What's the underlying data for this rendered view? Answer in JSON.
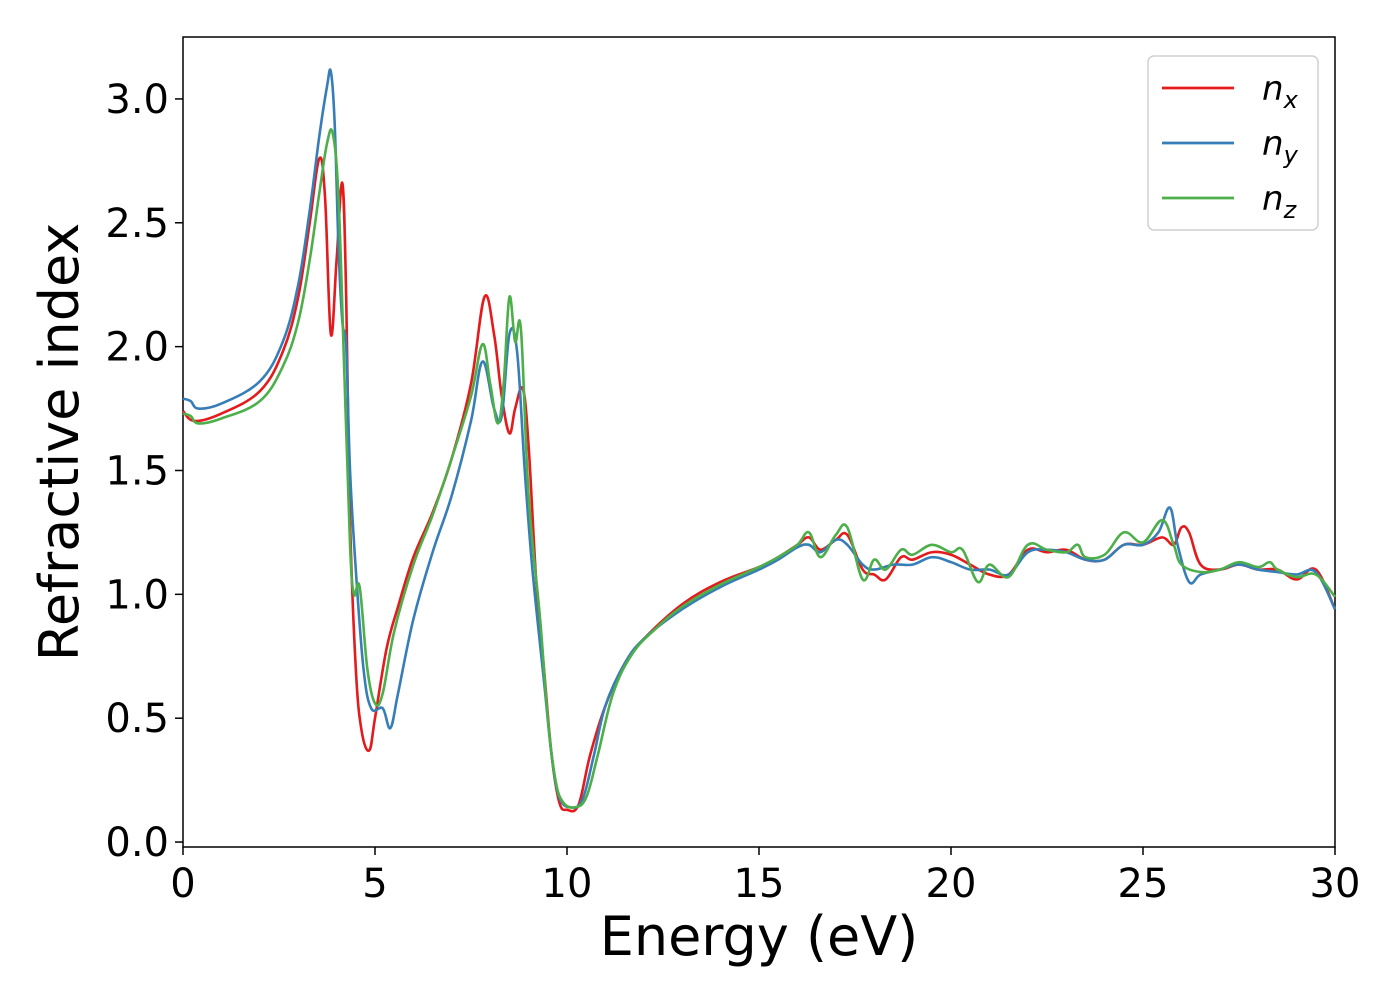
{
  "chart_data": {
    "type": "line",
    "title": "",
    "xlabel": "Energy (eV)",
    "ylabel": "Refractive index",
    "xlim": [
      0,
      30
    ],
    "ylim": [
      -0.02,
      3.25
    ],
    "xticks": [
      0,
      5,
      10,
      15,
      20,
      25,
      30
    ],
    "xtick_labels": [
      "0",
      "5",
      "10",
      "15",
      "20",
      "25",
      "30"
    ],
    "yticks": [
      0.0,
      0.5,
      1.0,
      1.5,
      2.0,
      2.5,
      3.0
    ],
    "ytick_labels": [
      "0.0",
      "0.5",
      "1.0",
      "1.5",
      "2.0",
      "2.5",
      "3.0"
    ],
    "grid": false,
    "legend_position": "top-right",
    "series": [
      {
        "name": "n",
        "subscript": "x",
        "color": "#e41a1c",
        "points": [
          [
            0,
            1.74
          ],
          [
            0.3,
            1.7
          ],
          [
            1,
            1.73
          ],
          [
            2,
            1.82
          ],
          [
            2.6,
            1.98
          ],
          [
            3,
            2.2
          ],
          [
            3.3,
            2.5
          ],
          [
            3.55,
            2.76
          ],
          [
            3.7,
            2.6
          ],
          [
            3.85,
            2.05
          ],
          [
            4.0,
            2.35
          ],
          [
            4.15,
            2.66
          ],
          [
            4.25,
            2.2
          ],
          [
            4.35,
            1.3
          ],
          [
            4.5,
            0.7
          ],
          [
            4.65,
            0.45
          ],
          [
            4.85,
            0.37
          ],
          [
            5.0,
            0.5
          ],
          [
            5.3,
            0.78
          ],
          [
            5.6,
            0.95
          ],
          [
            6,
            1.15
          ],
          [
            6.5,
            1.33
          ],
          [
            7,
            1.55
          ],
          [
            7.5,
            1.85
          ],
          [
            7.85,
            2.2
          ],
          [
            8.1,
            2.05
          ],
          [
            8.3,
            1.8
          ],
          [
            8.5,
            1.65
          ],
          [
            8.65,
            1.75
          ],
          [
            8.85,
            1.83
          ],
          [
            9.0,
            1.6
          ],
          [
            9.2,
            1.05
          ],
          [
            9.4,
            0.7
          ],
          [
            9.6,
            0.35
          ],
          [
            9.8,
            0.16
          ],
          [
            10.0,
            0.13
          ],
          [
            10.3,
            0.15
          ],
          [
            10.6,
            0.35
          ],
          [
            11,
            0.55
          ],
          [
            11.5,
            0.72
          ],
          [
            12,
            0.82
          ],
          [
            13,
            0.96
          ],
          [
            14,
            1.05
          ],
          [
            15,
            1.11
          ],
          [
            15.5,
            1.15
          ],
          [
            16,
            1.2
          ],
          [
            16.3,
            1.23
          ],
          [
            16.6,
            1.18
          ],
          [
            17,
            1.22
          ],
          [
            17.3,
            1.24
          ],
          [
            17.7,
            1.1
          ],
          [
            18,
            1.08
          ],
          [
            18.3,
            1.06
          ],
          [
            18.7,
            1.15
          ],
          [
            19,
            1.14
          ],
          [
            19.5,
            1.17
          ],
          [
            20,
            1.16
          ],
          [
            20.5,
            1.12
          ],
          [
            21,
            1.08
          ],
          [
            21.5,
            1.08
          ],
          [
            22,
            1.18
          ],
          [
            22.5,
            1.17
          ],
          [
            23,
            1.18
          ],
          [
            23.5,
            1.14
          ],
          [
            24,
            1.14
          ],
          [
            24.5,
            1.2
          ],
          [
            25,
            1.2
          ],
          [
            25.5,
            1.23
          ],
          [
            25.8,
            1.2
          ],
          [
            26,
            1.27
          ],
          [
            26.2,
            1.25
          ],
          [
            26.5,
            1.12
          ],
          [
            27,
            1.1
          ],
          [
            27.5,
            1.12
          ],
          [
            28,
            1.1
          ],
          [
            28.5,
            1.1
          ],
          [
            29,
            1.06
          ],
          [
            29.5,
            1.1
          ],
          [
            30,
            0.94
          ]
        ]
      },
      {
        "name": "n",
        "subscript": "y",
        "color": "#377eb8",
        "points": [
          [
            0,
            1.79
          ],
          [
            0.2,
            1.78
          ],
          [
            0.4,
            1.75
          ],
          [
            1,
            1.77
          ],
          [
            2,
            1.86
          ],
          [
            2.6,
            2.02
          ],
          [
            3,
            2.25
          ],
          [
            3.3,
            2.55
          ],
          [
            3.55,
            2.85
          ],
          [
            3.75,
            3.05
          ],
          [
            3.85,
            3.11
          ],
          [
            3.95,
            2.9
          ],
          [
            4.05,
            2.4
          ],
          [
            4.15,
            2.1
          ],
          [
            4.25,
            2.0
          ],
          [
            4.35,
            1.5
          ],
          [
            4.5,
            1.1
          ],
          [
            4.7,
            0.7
          ],
          [
            4.9,
            0.54
          ],
          [
            5.2,
            0.54
          ],
          [
            5.4,
            0.46
          ],
          [
            5.6,
            0.6
          ],
          [
            6,
            0.9
          ],
          [
            6.5,
            1.17
          ],
          [
            7,
            1.4
          ],
          [
            7.5,
            1.7
          ],
          [
            7.8,
            1.94
          ],
          [
            8.1,
            1.75
          ],
          [
            8.3,
            1.72
          ],
          [
            8.5,
            2.05
          ],
          [
            8.7,
            1.98
          ],
          [
            8.9,
            1.5
          ],
          [
            9.1,
            1.1
          ],
          [
            9.4,
            0.65
          ],
          [
            9.6,
            0.35
          ],
          [
            9.8,
            0.18
          ],
          [
            10.1,
            0.14
          ],
          [
            10.4,
            0.17
          ],
          [
            10.7,
            0.35
          ],
          [
            11,
            0.55
          ],
          [
            11.5,
            0.72
          ],
          [
            12,
            0.82
          ],
          [
            13,
            0.94
          ],
          [
            14,
            1.03
          ],
          [
            15,
            1.1
          ],
          [
            15.5,
            1.14
          ],
          [
            16,
            1.19
          ],
          [
            16.3,
            1.2
          ],
          [
            16.6,
            1.17
          ],
          [
            17,
            1.22
          ],
          [
            17.3,
            1.2
          ],
          [
            17.7,
            1.12
          ],
          [
            18,
            1.1
          ],
          [
            18.5,
            1.12
          ],
          [
            19,
            1.12
          ],
          [
            19.5,
            1.15
          ],
          [
            20,
            1.13
          ],
          [
            20.5,
            1.1
          ],
          [
            21,
            1.1
          ],
          [
            21.5,
            1.08
          ],
          [
            22,
            1.17
          ],
          [
            22.5,
            1.18
          ],
          [
            23,
            1.17
          ],
          [
            23.5,
            1.14
          ],
          [
            24,
            1.14
          ],
          [
            24.5,
            1.2
          ],
          [
            25,
            1.2
          ],
          [
            25.4,
            1.25
          ],
          [
            25.7,
            1.35
          ],
          [
            25.9,
            1.2
          ],
          [
            26.2,
            1.05
          ],
          [
            26.5,
            1.08
          ],
          [
            27,
            1.1
          ],
          [
            27.5,
            1.12
          ],
          [
            28,
            1.1
          ],
          [
            28.5,
            1.09
          ],
          [
            29,
            1.08
          ],
          [
            29.5,
            1.09
          ],
          [
            30,
            0.94
          ]
        ]
      },
      {
        "name": "n",
        "subscript": "z",
        "color": "#4daf4a",
        "points": [
          [
            0,
            1.73
          ],
          [
            0.2,
            1.72
          ],
          [
            0.4,
            1.69
          ],
          [
            1,
            1.71
          ],
          [
            2,
            1.78
          ],
          [
            2.6,
            1.92
          ],
          [
            3,
            2.1
          ],
          [
            3.3,
            2.35
          ],
          [
            3.55,
            2.62
          ],
          [
            3.75,
            2.82
          ],
          [
            3.9,
            2.86
          ],
          [
            4.05,
            2.6
          ],
          [
            4.2,
            1.9
          ],
          [
            4.35,
            1.2
          ],
          [
            4.45,
            1.0
          ],
          [
            4.6,
            1.03
          ],
          [
            4.8,
            0.7
          ],
          [
            5.0,
            0.56
          ],
          [
            5.2,
            0.6
          ],
          [
            5.5,
            0.85
          ],
          [
            6,
            1.12
          ],
          [
            6.5,
            1.32
          ],
          [
            7,
            1.55
          ],
          [
            7.5,
            1.8
          ],
          [
            7.8,
            2.01
          ],
          [
            8.0,
            1.85
          ],
          [
            8.2,
            1.69
          ],
          [
            8.35,
            1.85
          ],
          [
            8.5,
            2.2
          ],
          [
            8.65,
            2.02
          ],
          [
            8.8,
            2.07
          ],
          [
            9.0,
            1.4
          ],
          [
            9.3,
            0.9
          ],
          [
            9.5,
            0.5
          ],
          [
            9.7,
            0.25
          ],
          [
            9.9,
            0.16
          ],
          [
            10.2,
            0.14
          ],
          [
            10.5,
            0.18
          ],
          [
            10.8,
            0.35
          ],
          [
            11.2,
            0.6
          ],
          [
            11.7,
            0.76
          ],
          [
            12.3,
            0.86
          ],
          [
            13,
            0.95
          ],
          [
            14,
            1.04
          ],
          [
            15,
            1.11
          ],
          [
            15.5,
            1.15
          ],
          [
            16,
            1.2
          ],
          [
            16.3,
            1.25
          ],
          [
            16.6,
            1.15
          ],
          [
            17,
            1.24
          ],
          [
            17.3,
            1.27
          ],
          [
            17.7,
            1.06
          ],
          [
            18,
            1.14
          ],
          [
            18.3,
            1.1
          ],
          [
            18.7,
            1.18
          ],
          [
            19,
            1.16
          ],
          [
            19.5,
            1.2
          ],
          [
            20,
            1.17
          ],
          [
            20.3,
            1.18
          ],
          [
            20.7,
            1.05
          ],
          [
            21,
            1.12
          ],
          [
            21.5,
            1.07
          ],
          [
            22,
            1.2
          ],
          [
            22.5,
            1.18
          ],
          [
            23,
            1.17
          ],
          [
            23.3,
            1.2
          ],
          [
            23.5,
            1.15
          ],
          [
            24,
            1.16
          ],
          [
            24.5,
            1.25
          ],
          [
            25,
            1.21
          ],
          [
            25.5,
            1.3
          ],
          [
            25.8,
            1.2
          ],
          [
            26,
            1.12
          ],
          [
            26.5,
            1.09
          ],
          [
            27,
            1.1
          ],
          [
            27.5,
            1.13
          ],
          [
            28,
            1.11
          ],
          [
            28.3,
            1.13
          ],
          [
            28.5,
            1.1
          ],
          [
            29,
            1.07
          ],
          [
            29.5,
            1.08
          ],
          [
            30,
            0.99
          ]
        ]
      }
    ]
  }
}
